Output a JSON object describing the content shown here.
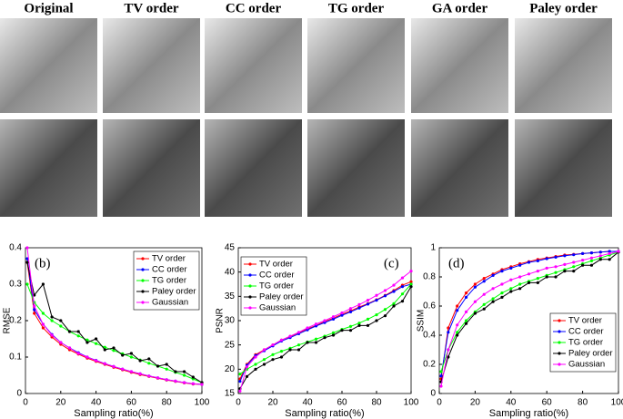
{
  "header": {
    "columns": [
      "Original",
      "TV order",
      "CC order",
      "TG order",
      "GA order",
      "Paley order"
    ]
  },
  "chart_data": [
    {
      "type": "line",
      "annotation": "(b)",
      "x_label": "Sampling ratio(%)",
      "y_label": "RMSE",
      "x": [
        1,
        5,
        10,
        15,
        20,
        25,
        30,
        35,
        40,
        45,
        50,
        55,
        60,
        65,
        70,
        75,
        80,
        85,
        90,
        95,
        100
      ],
      "xlim": [
        0,
        100
      ],
      "xticks": [
        0,
        20,
        40,
        60,
        80,
        100
      ],
      "ylim": [
        0,
        0.4
      ],
      "yticks": [
        0,
        0.1,
        0.2,
        0.3,
        0.4
      ],
      "legend": "top-right",
      "series": [
        {
          "name": "TV order",
          "color": "#ff0000",
          "values": [
            0.36,
            0.22,
            0.18,
            0.155,
            0.135,
            0.12,
            0.108,
            0.097,
            0.088,
            0.08,
            0.072,
            0.065,
            0.058,
            0.052,
            0.047,
            0.042,
            0.037,
            0.033,
            0.029,
            0.026,
            0.025
          ]
        },
        {
          "name": "CC order",
          "color": "#0000ff",
          "values": [
            0.37,
            0.23,
            0.19,
            0.162,
            0.14,
            0.125,
            0.112,
            0.1,
            0.091,
            0.082,
            0.074,
            0.067,
            0.06,
            0.054,
            0.048,
            0.043,
            0.038,
            0.034,
            0.03,
            0.027,
            0.025
          ]
        },
        {
          "name": "TG order",
          "color": "#00ff00",
          "values": [
            0.3,
            0.25,
            0.22,
            0.2,
            0.185,
            0.17,
            0.158,
            0.147,
            0.137,
            0.127,
            0.118,
            0.109,
            0.1,
            0.092,
            0.083,
            0.075,
            0.067,
            0.058,
            0.05,
            0.04,
            0.03
          ]
        },
        {
          "name": "Paley order",
          "color": "#000000",
          "values": [
            0.36,
            0.27,
            0.3,
            0.21,
            0.2,
            0.17,
            0.17,
            0.14,
            0.15,
            0.12,
            0.125,
            0.105,
            0.11,
            0.09,
            0.095,
            0.075,
            0.08,
            0.06,
            0.06,
            0.045,
            0.03
          ]
        },
        {
          "name": "Gaussian",
          "color": "#ff00ff",
          "values": [
            0.4,
            0.24,
            0.19,
            0.16,
            0.14,
            0.125,
            0.11,
            0.1,
            0.09,
            0.082,
            0.074,
            0.067,
            0.06,
            0.054,
            0.048,
            0.043,
            0.038,
            0.034,
            0.03,
            0.027,
            0.025
          ]
        }
      ]
    },
    {
      "type": "line",
      "annotation": "(c)",
      "x_label": "Sampling ratio(%)",
      "y_label": "PSNR",
      "x": [
        1,
        5,
        10,
        15,
        20,
        25,
        30,
        35,
        40,
        45,
        50,
        55,
        60,
        65,
        70,
        75,
        80,
        85,
        90,
        95,
        100
      ],
      "xlim": [
        0,
        100
      ],
      "xticks": [
        0,
        20,
        40,
        60,
        80,
        100
      ],
      "ylim": [
        15,
        45
      ],
      "yticks": [
        15,
        20,
        25,
        30,
        35,
        40,
        45
      ],
      "legend": "top-left",
      "series": [
        {
          "name": "TV order",
          "color": "#ff0000",
          "values": [
            18,
            21,
            23,
            24,
            25,
            26,
            26.7,
            27.5,
            28.3,
            29,
            29.8,
            30.5,
            31.3,
            32,
            32.8,
            33.5,
            34.3,
            35.2,
            36.2,
            37.3,
            38
          ]
        },
        {
          "name": "CC order",
          "color": "#0000ff",
          "values": [
            17.5,
            20.8,
            22.8,
            23.8,
            24.8,
            25.8,
            26.5,
            27.3,
            28.1,
            28.9,
            29.6,
            30.3,
            31.1,
            31.8,
            32.6,
            33.4,
            34.2,
            35.1,
            36,
            37,
            37.5
          ]
        },
        {
          "name": "TG order",
          "color": "#00ff00",
          "values": [
            19,
            20,
            21,
            22,
            23,
            23.7,
            24.3,
            25,
            25.6,
            26.2,
            26.8,
            27.5,
            28.2,
            28.8,
            29.5,
            30.3,
            31.2,
            32.3,
            33.5,
            35.5,
            37.5
          ]
        },
        {
          "name": "Paley order",
          "color": "#000000",
          "values": [
            16,
            18.5,
            20,
            21,
            22,
            22.5,
            24,
            24,
            25.5,
            25.5,
            26.5,
            27,
            28,
            28,
            29,
            29,
            30,
            31,
            33,
            34,
            37
          ]
        },
        {
          "name": "Gaussian",
          "color": "#ff00ff",
          "values": [
            15.5,
            20.5,
            22.5,
            24,
            25,
            26,
            26.8,
            27.6,
            28.5,
            29.3,
            30,
            30.8,
            31.6,
            32.5,
            33.3,
            34.2,
            35.2,
            36.2,
            37.3,
            38.8,
            40.2
          ]
        }
      ]
    },
    {
      "type": "line",
      "annotation": "(d)",
      "x_label": "Sampling ratio(%)",
      "y_label": "SSIM",
      "x": [
        1,
        5,
        10,
        15,
        20,
        25,
        30,
        35,
        40,
        45,
        50,
        55,
        60,
        65,
        70,
        75,
        80,
        85,
        90,
        95,
        100
      ],
      "xlim": [
        0,
        100
      ],
      "xticks": [
        0,
        20,
        40,
        60,
        80,
        100
      ],
      "ylim": [
        0,
        1
      ],
      "yticks": [
        0,
        0.2,
        0.4,
        0.6,
        0.8,
        1
      ],
      "legend": "bottom-right",
      "series": [
        {
          "name": "TV order",
          "color": "#ff0000",
          "values": [
            0.1,
            0.45,
            0.6,
            0.69,
            0.75,
            0.79,
            0.82,
            0.85,
            0.87,
            0.89,
            0.905,
            0.92,
            0.93,
            0.94,
            0.95,
            0.955,
            0.96,
            0.965,
            0.97,
            0.975,
            0.975
          ]
        },
        {
          "name": "CC order",
          "color": "#0000ff",
          "values": [
            0.12,
            0.42,
            0.57,
            0.66,
            0.73,
            0.77,
            0.81,
            0.84,
            0.86,
            0.88,
            0.9,
            0.91,
            0.925,
            0.935,
            0.945,
            0.952,
            0.96,
            0.965,
            0.97,
            0.975,
            0.975
          ]
        },
        {
          "name": "TG order",
          "color": "#00ff00",
          "values": [
            0.15,
            0.3,
            0.42,
            0.5,
            0.56,
            0.61,
            0.65,
            0.69,
            0.72,
            0.75,
            0.77,
            0.79,
            0.81,
            0.83,
            0.85,
            0.87,
            0.89,
            0.91,
            0.93,
            0.95,
            0.97
          ]
        },
        {
          "name": "Paley order",
          "color": "#000000",
          "values": [
            0.08,
            0.25,
            0.4,
            0.48,
            0.55,
            0.58,
            0.63,
            0.66,
            0.7,
            0.72,
            0.76,
            0.76,
            0.8,
            0.8,
            0.84,
            0.84,
            0.88,
            0.88,
            0.92,
            0.92,
            0.97
          ]
        },
        {
          "name": "Gaussian",
          "color": "#ff00ff",
          "values": [
            0.05,
            0.3,
            0.47,
            0.56,
            0.63,
            0.68,
            0.72,
            0.75,
            0.78,
            0.8,
            0.82,
            0.84,
            0.86,
            0.87,
            0.885,
            0.9,
            0.915,
            0.93,
            0.945,
            0.96,
            0.975
          ]
        }
      ]
    }
  ]
}
